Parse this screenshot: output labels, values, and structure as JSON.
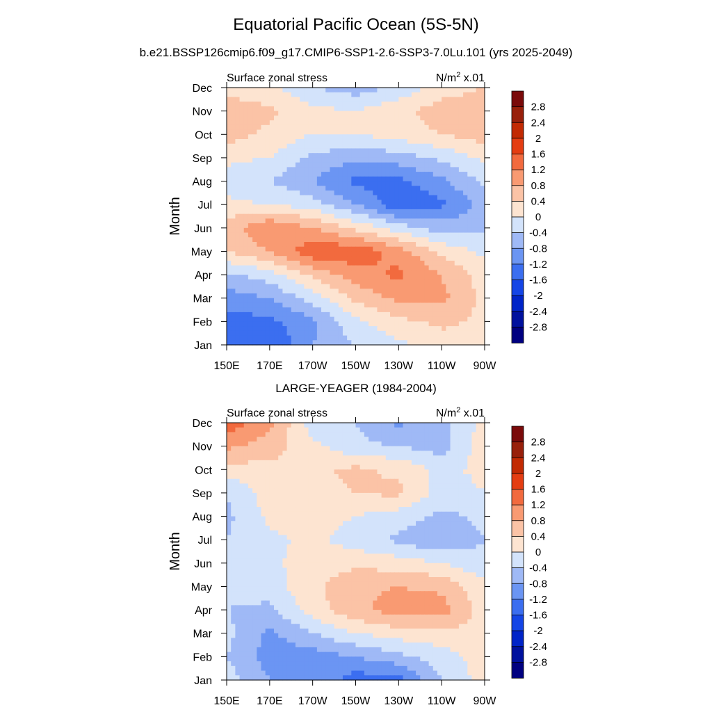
{
  "figure": {
    "title": "Equatorial Pacific Ocean (5S-5N)",
    "case_subtitle": "b.e21.BSSP126cmip6.f09_g17.CMIP6-SSP1-2.6-SSP3-7.0Lu.101 (yrs 2025-2049)",
    "obs_subtitle": "LARGE-YEAGER (1984-2004)"
  },
  "chart_data": [
    {
      "type": "heatmap",
      "panel": "case",
      "left_label": "Surface zonal stress",
      "right_label_main": "N/m",
      "right_label_sup": "2",
      "right_label_tail": " x.01",
      "ylabel": "Month",
      "xlabel": "",
      "x_tick_labels": [
        "150E",
        "170E",
        "170W",
        "150W",
        "130W",
        "110W",
        "90W"
      ],
      "x_tick_values": [
        150,
        170,
        190,
        210,
        230,
        250,
        270
      ],
      "xlim": [
        150,
        270
      ],
      "y_tick_labels": [
        "Jan",
        "Feb",
        "Mar",
        "Apr",
        "May",
        "Jun",
        "Jul",
        "Aug",
        "Sep",
        "Oct",
        "Nov",
        "Dec"
      ],
      "ylim": [
        1,
        12
      ],
      "contour_levels": [
        -2.8,
        -2.4,
        -2,
        -1.6,
        -1.2,
        -0.8,
        -0.4,
        0,
        0.4,
        0.8,
        1.2,
        1.6,
        2,
        2.4,
        2.8
      ],
      "x": [
        150,
        170,
        190,
        210,
        230,
        250,
        270
      ],
      "months": [
        1,
        2,
        3,
        4,
        5,
        6,
        7,
        8,
        9,
        10,
        11,
        12
      ],
      "values": [
        [
          -1.5,
          -1.6,
          -0.8,
          -0.4,
          -0.1,
          0.2,
          0.2
        ],
        [
          -1.4,
          -1.3,
          -0.9,
          -0.1,
          0.3,
          0.5,
          0.3
        ],
        [
          -1.0,
          -0.8,
          -0.2,
          0.5,
          0.9,
          0.9,
          0.3
        ],
        [
          -0.5,
          -0.2,
          0.5,
          1.0,
          1.3,
          0.8,
          0.2
        ],
        [
          0.4,
          0.8,
          1.5,
          1.5,
          1.0,
          0.3,
          -0.1
        ],
        [
          0.6,
          1.2,
          0.8,
          0.3,
          -0.2,
          -0.6,
          -0.5
        ],
        [
          0.1,
          0.0,
          -0.2,
          -0.8,
          -1.5,
          -1.3,
          -0.6
        ],
        [
          -0.2,
          -0.4,
          -0.8,
          -1.3,
          -1.3,
          -0.9,
          -0.3
        ],
        [
          0.1,
          0.0,
          -0.5,
          -0.7,
          -0.6,
          -0.3,
          0.1
        ],
        [
          0.6,
          0.3,
          0.0,
          0.0,
          0.2,
          0.4,
          0.6
        ],
        [
          0.6,
          0.5,
          0.1,
          0.0,
          0.3,
          0.6,
          0.7
        ],
        [
          0.3,
          0.1,
          -0.4,
          -0.6,
          -0.3,
          0.2,
          0.4
        ]
      ],
      "colorbar_labels": [
        "2.8",
        "2.4",
        "2",
        "1.6",
        "1.2",
        "0.8",
        "0.4",
        "0",
        "-0.4",
        "-0.8",
        "-1.2",
        "-1.6",
        "-2",
        "-2.4",
        "-2.8"
      ]
    },
    {
      "type": "heatmap",
      "panel": "obs",
      "left_label": "Surface zonal stress",
      "right_label_main": "N/m",
      "right_label_sup": "2",
      "right_label_tail": " x.01",
      "ylabel": "Month",
      "xlabel": "",
      "x_tick_labels": [
        "150E",
        "170E",
        "170W",
        "150W",
        "130W",
        "110W",
        "90W"
      ],
      "x_tick_values": [
        150,
        170,
        190,
        210,
        230,
        250,
        270
      ],
      "xlim": [
        150,
        270
      ],
      "y_tick_labels": [
        "Jan",
        "Feb",
        "Mar",
        "Apr",
        "May",
        "Jun",
        "Jul",
        "Aug",
        "Sep",
        "Oct",
        "Nov",
        "Dec"
      ],
      "ylim": [
        1,
        12
      ],
      "contour_levels": [
        -2.8,
        -2.4,
        -2,
        -1.6,
        -1.2,
        -0.8,
        -0.4,
        0,
        0.4,
        0.8,
        1.2,
        1.6,
        2,
        2.4,
        2.8
      ],
      "x": [
        150,
        170,
        190,
        210,
        230,
        250,
        270
      ],
      "months": [
        1,
        2,
        3,
        4,
        5,
        6,
        7,
        8,
        9,
        10,
        11,
        12
      ],
      "values": [
        [
          -0.2,
          -0.8,
          -0.9,
          -1.4,
          -1.4,
          -0.4,
          0.2
        ],
        [
          -0.4,
          -1.0,
          -1.0,
          -0.8,
          -0.5,
          -0.2,
          0.2
        ],
        [
          -0.3,
          -0.9,
          -0.4,
          0.0,
          0.2,
          0.3,
          0.2
        ],
        [
          -0.4,
          -0.5,
          0.2,
          0.7,
          1.0,
          1.0,
          0.2
        ],
        [
          -0.3,
          -0.2,
          0.3,
          0.7,
          0.8,
          0.7,
          0.1
        ],
        [
          -0.3,
          -0.1,
          0.2,
          0.3,
          0.2,
          0.0,
          -0.3
        ],
        [
          -0.4,
          -0.1,
          0.1,
          -0.2,
          -0.5,
          -0.8,
          -0.4
        ],
        [
          -0.5,
          0.1,
          0.2,
          0.0,
          -0.2,
          -0.5,
          -0.3
        ],
        [
          -0.4,
          0.2,
          0.3,
          0.4,
          0.5,
          -0.2,
          0.0
        ],
        [
          0.2,
          0.3,
          0.3,
          0.5,
          0.3,
          -0.1,
          0.1
        ],
        [
          0.9,
          0.6,
          0.1,
          -0.3,
          -0.4,
          -0.6,
          0.3
        ],
        [
          1.5,
          0.9,
          -0.2,
          -0.4,
          -0.9,
          -0.5,
          0.1
        ]
      ],
      "colorbar_labels": [
        "2.8",
        "2.4",
        "2",
        "1.6",
        "1.2",
        "0.8",
        "0.4",
        "0",
        "-0.4",
        "-0.8",
        "-1.2",
        "-1.6",
        "-2",
        "-2.4",
        "-2.8"
      ]
    }
  ],
  "colors": {
    "palette": [
      "#000080",
      "#00119e",
      "#0024c8",
      "#1445e6",
      "#3b6ef0",
      "#6b95f3",
      "#9fb9f6",
      "#d3e3fb",
      "#fde4d1",
      "#fbc3a6",
      "#f99a72",
      "#f26a3e",
      "#e43d12",
      "#c22a03",
      "#98200b",
      "#7a0a0a"
    ]
  }
}
